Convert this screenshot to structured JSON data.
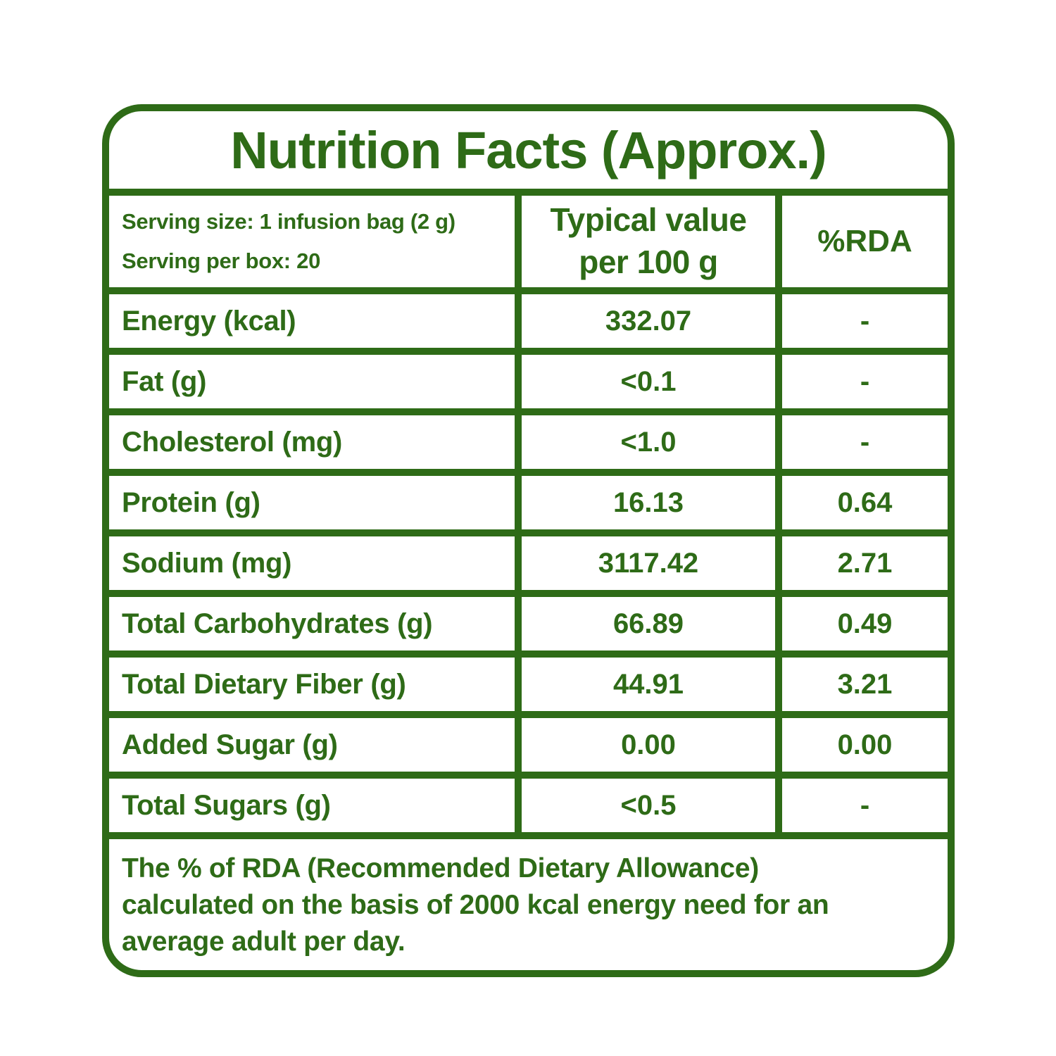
{
  "colors": {
    "accent": "#2e6b17",
    "background": "#ffffff"
  },
  "title": "Nutrition Facts (Approx.)",
  "header": {
    "serving_size": "Serving size: 1 infusion bag (2 g)",
    "serving_per_box": "Serving per box: 20",
    "typical_value_line1": "Typical value",
    "typical_value_line2": "per 100 g",
    "rda": "%RDA"
  },
  "rows": [
    {
      "label": "Energy (kcal)",
      "value": "332.07",
      "rda": "-"
    },
    {
      "label": "Fat (g)",
      "value": "<0.1",
      "rda": "-"
    },
    {
      "label": "Cholesterol (mg)",
      "value": "<1.0",
      "rda": "-"
    },
    {
      "label": "Protein (g)",
      "value": "16.13",
      "rda": "0.64"
    },
    {
      "label": "Sodium (mg)",
      "value": "3117.42",
      "rda": "2.71"
    },
    {
      "label": "Total Carbohydrates (g)",
      "value": "66.89",
      "rda": "0.49"
    },
    {
      "label": "Total Dietary Fiber (g)",
      "value": "44.91",
      "rda": "3.21"
    },
    {
      "label": "Added Sugar (g)",
      "value": "0.00",
      "rda": "0.00"
    },
    {
      "label": "Total Sugars (g)",
      "value": "<0.5",
      "rda": "-"
    }
  ],
  "footnote_lines": [
    "The % of  RDA (Recommended Dietary Allowance)",
    "calculated on the basis of 2000 kcal energy need for an",
    "average adult per day."
  ]
}
